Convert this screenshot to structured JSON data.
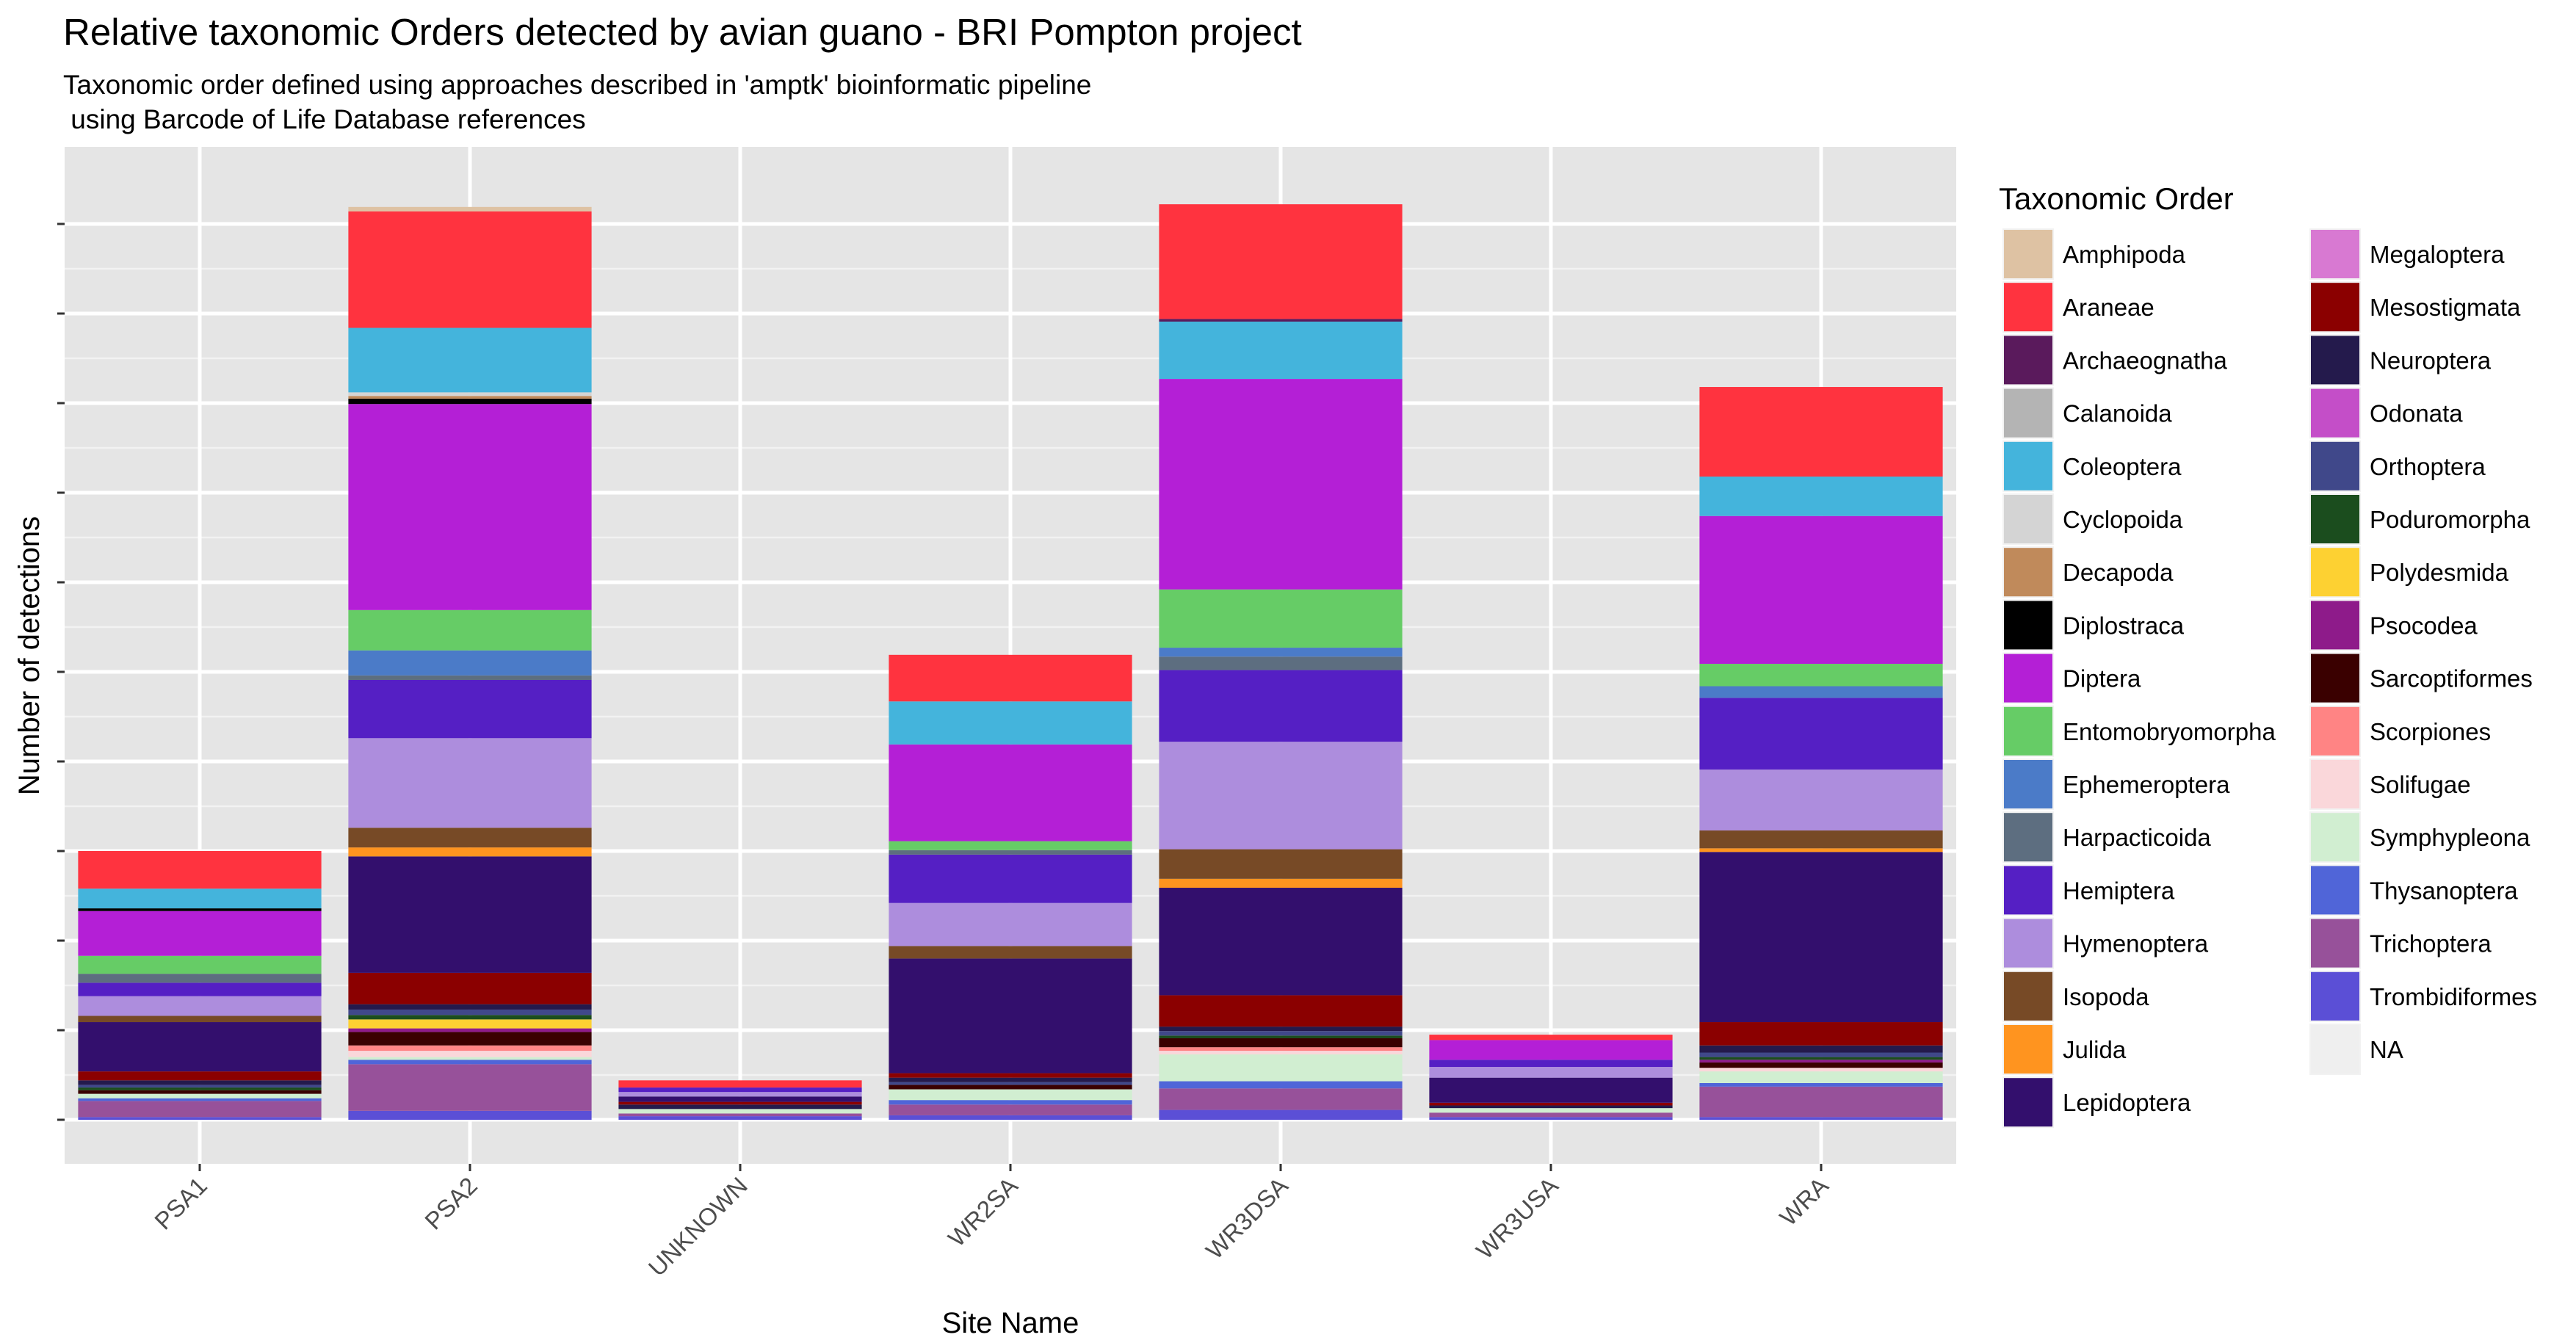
{
  "chart_data": {
    "type": "bar",
    "stacked": true,
    "title": "Relative taxonomic Orders detected by avian guano - BRI Pompton project",
    "subtitle": "Taxonomic order defined using approaches described in 'amptk' bioinformatic pipeline\n using Barcode of Life Database references",
    "xlabel": "Site Name",
    "ylabel": "Number of detections",
    "ylim": [
      0,
      10.3
    ],
    "y_tick_labels_shown": false,
    "grid": true,
    "legend_title": "Taxonomic Order",
    "legend_position": "right",
    "categories": [
      "PSA1",
      "PSA2",
      "UNKNOWN",
      "WR2SA",
      "WR3DSA",
      "WR3USA",
      "WRA"
    ],
    "series": [
      {
        "name": "Amphipoda",
        "color": "#DEC2A3",
        "values": [
          0,
          0.05,
          0,
          0,
          0,
          0,
          0
        ]
      },
      {
        "name": "Araneae",
        "color": "#FF333F",
        "values": [
          0.42,
          1.3,
          0.08,
          0.52,
          1.28,
          0.06,
          1.0
        ]
      },
      {
        "name": "Archaeognatha",
        "color": "#5A1A5C",
        "values": [
          0,
          0,
          0,
          0,
          0.03,
          0,
          0
        ]
      },
      {
        "name": "Calanoida",
        "color": "#B4B4B4",
        "values": [
          0,
          0,
          0,
          0,
          0,
          0,
          0
        ]
      },
      {
        "name": "Coleoptera",
        "color": "#44B4DC",
        "values": [
          0.22,
          0.72,
          0,
          0.48,
          0.64,
          0,
          0.44
        ]
      },
      {
        "name": "Cyclopoida",
        "color": "#D4D4D4",
        "values": [
          0,
          0.04,
          0,
          0,
          0,
          0,
          0
        ]
      },
      {
        "name": "Decapoda",
        "color": "#C08A5B",
        "values": [
          0,
          0.03,
          0,
          0,
          0,
          0,
          0
        ]
      },
      {
        "name": "Diplostraca",
        "color": "#000000",
        "values": [
          0.03,
          0.06,
          0,
          0,
          0,
          0,
          0
        ]
      },
      {
        "name": "Diptera",
        "color": "#B41FD6",
        "values": [
          0.5,
          2.3,
          0,
          1.08,
          2.35,
          0.22,
          1.65
        ]
      },
      {
        "name": "Entomobryomorpha",
        "color": "#66CC66",
        "values": [
          0.2,
          0.45,
          0,
          0.1,
          0.65,
          0,
          0.25
        ]
      },
      {
        "name": "Ephemeroptera",
        "color": "#4B7BC8",
        "values": [
          0,
          0.28,
          0,
          0,
          0.1,
          0,
          0.13
        ]
      },
      {
        "name": "Harpacticoida",
        "color": "#5D6E80",
        "values": [
          0.1,
          0.05,
          0,
          0.05,
          0.15,
          0,
          0
        ]
      },
      {
        "name": "Hemiptera",
        "color": "#551FC4",
        "values": [
          0.15,
          0.65,
          0.05,
          0.54,
          0.8,
          0.08,
          0.8
        ]
      },
      {
        "name": "Hymenoptera",
        "color": "#AD8DDD",
        "values": [
          0.22,
          1.0,
          0.05,
          0.48,
          1.2,
          0.12,
          0.68
        ]
      },
      {
        "name": "Isopoda",
        "color": "#774A26",
        "values": [
          0.07,
          0.22,
          0,
          0.14,
          0.33,
          0,
          0.2
        ]
      },
      {
        "name": "Julida",
        "color": "#FF941F",
        "values": [
          0,
          0.1,
          0,
          0,
          0.1,
          0,
          0.04
        ]
      },
      {
        "name": "Lepidoptera",
        "color": "#330F6D",
        "values": [
          0.55,
          1.3,
          0.06,
          1.28,
          1.2,
          0.28,
          1.9
        ]
      },
      {
        "name": "Megaloptera",
        "color": "#D879D2",
        "values": [
          0,
          0,
          0,
          0,
          0,
          0,
          0
        ]
      },
      {
        "name": "Mesostigmata",
        "color": "#8B0000",
        "values": [
          0.1,
          0.35,
          0.03,
          0.05,
          0.35,
          0.03,
          0.26
        ]
      },
      {
        "name": "Neuroptera",
        "color": "#241A4C",
        "values": [
          0.05,
          0.06,
          0.05,
          0.05,
          0.05,
          0.03,
          0.08
        ]
      },
      {
        "name": "Odonata",
        "color": "#C44EC8",
        "values": [
          0,
          0,
          0,
          0,
          0,
          0,
          0
        ]
      },
      {
        "name": "Orthoptera",
        "color": "#40488A",
        "values": [
          0.03,
          0.06,
          0,
          0.03,
          0.05,
          0,
          0.05
        ]
      },
      {
        "name": "Poduromorpha",
        "color": "#1B4D1E",
        "values": [
          0.03,
          0.05,
          0,
          0,
          0.03,
          0,
          0.03
        ]
      },
      {
        "name": "Polydesmida",
        "color": "#FDD132",
        "values": [
          0,
          0.1,
          0,
          0,
          0,
          0,
          0
        ]
      },
      {
        "name": "Psocodea",
        "color": "#8E1B8A",
        "values": [
          0,
          0.04,
          0,
          0,
          0,
          0,
          0.03
        ]
      },
      {
        "name": "Sarcoptiformes",
        "color": "#3A0000",
        "values": [
          0.04,
          0.15,
          0,
          0.05,
          0.1,
          0,
          0.06
        ]
      },
      {
        "name": "Scorpiones",
        "color": "#FF8484",
        "values": [
          0,
          0.06,
          0,
          0,
          0.04,
          0,
          0
        ]
      },
      {
        "name": "Solifugae",
        "color": "#FAD7DA",
        "values": [
          0,
          0.07,
          0,
          0,
          0.04,
          0,
          0.04
        ]
      },
      {
        "name": "Symphypleona",
        "color": "#D1EED1",
        "values": [
          0.05,
          0.03,
          0.05,
          0.12,
          0.3,
          0.05,
          0.13
        ]
      },
      {
        "name": "Thysanoptera",
        "color": "#5065D8",
        "values": [
          0.03,
          0.05,
          0,
          0.05,
          0.08,
          0,
          0.04
        ]
      },
      {
        "name": "Trichoptera",
        "color": "#97519A",
        "values": [
          0.18,
          0.52,
          0.03,
          0.12,
          0.24,
          0.05,
          0.34
        ]
      },
      {
        "name": "Trombidiformes",
        "color": "#5B4FD6",
        "values": [
          0.03,
          0.1,
          0.04,
          0.05,
          0.11,
          0.03,
          0.03
        ]
      },
      {
        "name": "NA",
        "color": "#EFEFEF",
        "values": [
          0,
          0,
          0,
          0,
          0,
          0,
          0
        ]
      }
    ]
  }
}
